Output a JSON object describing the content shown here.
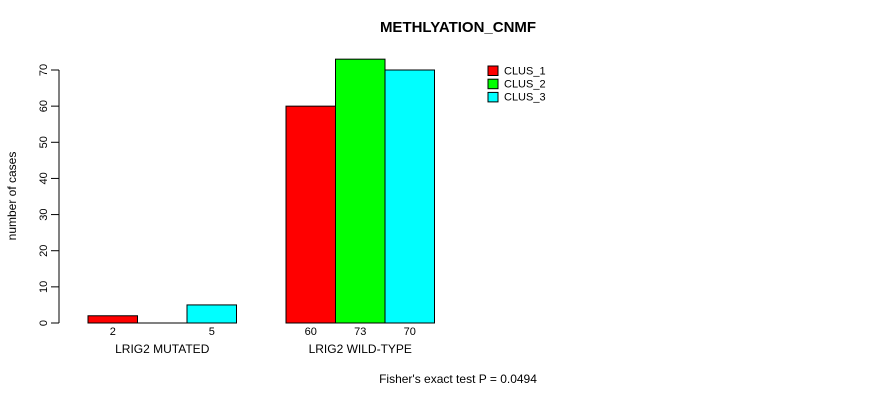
{
  "chart_data": {
    "type": "bar",
    "title": "METHLYATION_CNMF",
    "ylabel": "number of cases",
    "xlabel": "",
    "ylim": [
      0,
      70
    ],
    "yticks": [
      0,
      10,
      20,
      30,
      40,
      50,
      60,
      70
    ],
    "categories": [
      "LRIG2 MUTATED",
      "LRIG2 WILD-TYPE"
    ],
    "series": [
      {
        "name": "CLUS_1",
        "color": "#ff0000",
        "values": [
          2,
          60
        ]
      },
      {
        "name": "CLUS_2",
        "color": "#00ff00",
        "values": [
          0,
          73
        ]
      },
      {
        "name": "CLUS_3",
        "color": "#00ffff",
        "values": [
          5,
          70
        ]
      }
    ],
    "value_labels": [
      [
        "2",
        "",
        "5"
      ],
      [
        "60",
        "73",
        "70"
      ]
    ],
    "legend": {
      "position": "top-right",
      "entries": [
        "CLUS_1",
        "CLUS_2",
        "CLUS_3"
      ]
    },
    "annotation": "Fisher's exact test P = 0.0494",
    "axis_color": "#000000",
    "grid": false
  }
}
